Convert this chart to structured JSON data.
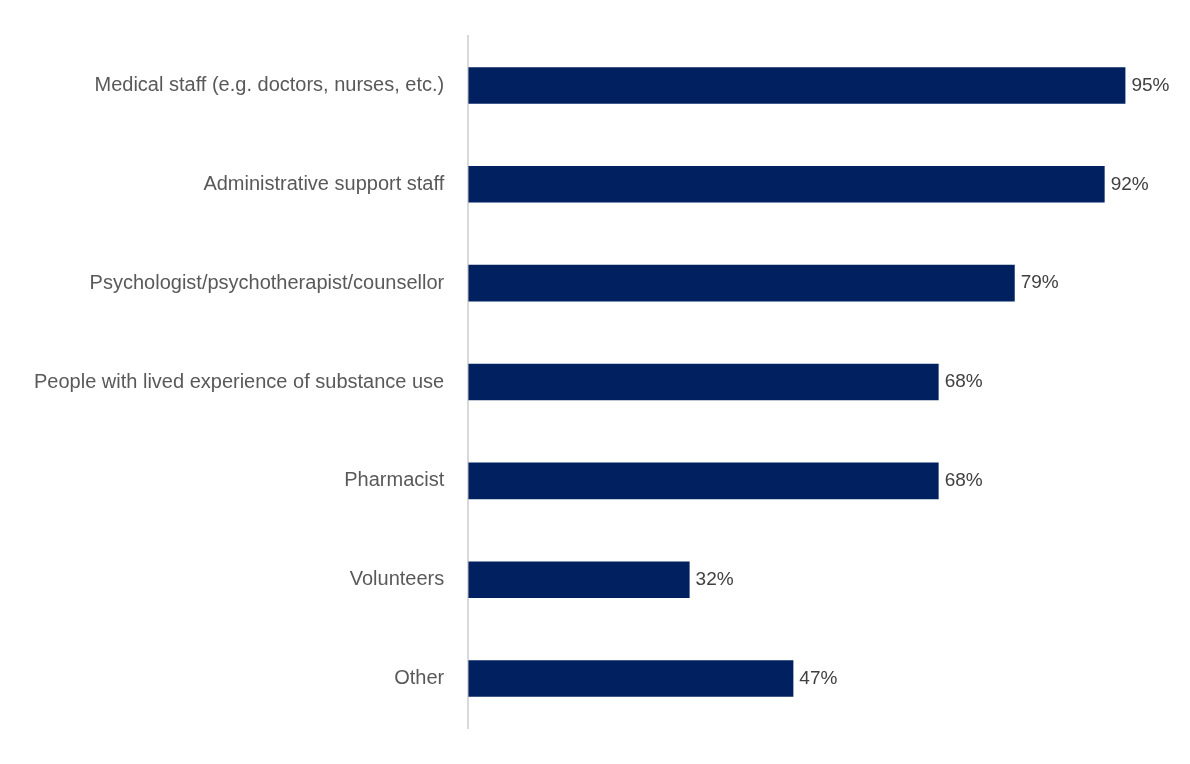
{
  "chart_data": {
    "type": "bar",
    "orientation": "horizontal",
    "categories": [
      "Medical staff (e.g. doctors, nurses, etc.)",
      "Administrative support staff",
      "Psychologist/psychotherapist/counsellor",
      "People with lived experience of substance use",
      "Pharmacist",
      "Volunteers",
      "Other"
    ],
    "values": [
      95,
      92,
      79,
      68,
      68,
      32,
      47
    ],
    "color": "#002060",
    "value_labels": [
      "95%",
      "92%",
      "79%",
      "68%",
      "68%",
      "32%",
      "47%"
    ],
    "tick_labels": "y",
    "grid": false,
    "legend": false
  }
}
